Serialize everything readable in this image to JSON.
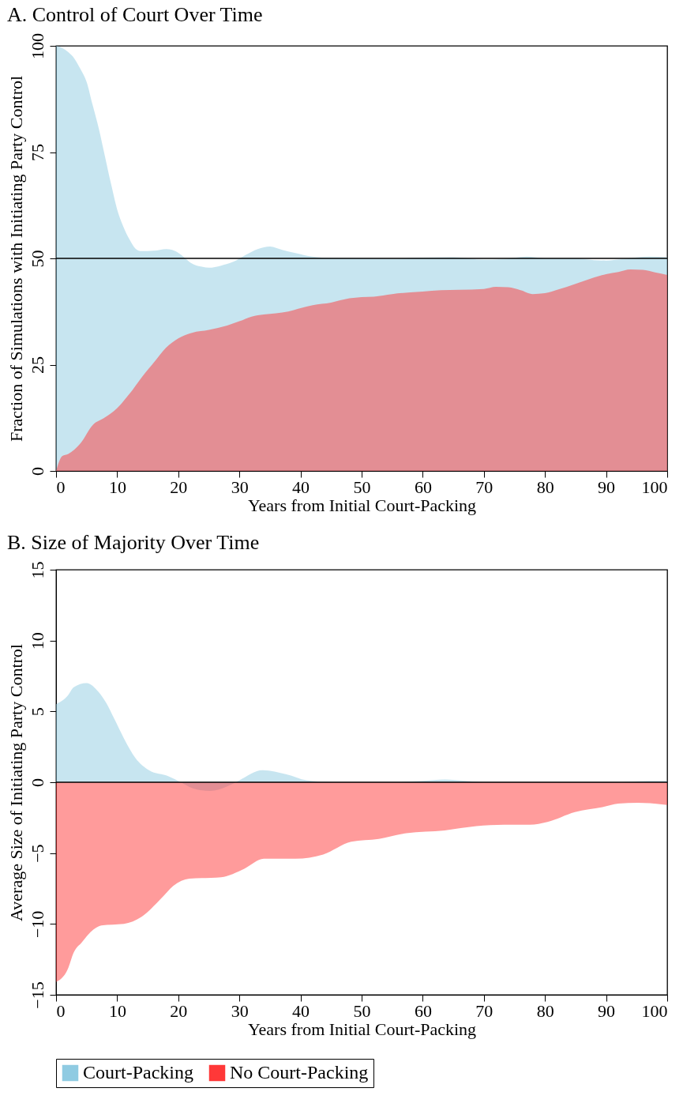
{
  "chart_data": [
    {
      "type": "area",
      "title": "A. Control of Court Over Time",
      "xlabel": "Years from Initial Court-Packing",
      "ylabel": "Fraction of Simulations with Initiating Party Control",
      "xlim": [
        0,
        100
      ],
      "xticks": [
        0,
        10,
        20,
        30,
        40,
        50,
        60,
        70,
        80,
        90,
        100
      ],
      "ylim": [
        0,
        100
      ],
      "yticks": [
        0,
        25,
        50,
        75,
        100
      ],
      "ref_lines": [
        {
          "axis": "y",
          "value": 50,
          "color": "#000000"
        }
      ],
      "legend": "bottom",
      "series": [
        {
          "name": "Court-Packing",
          "color": "#8fcbe2",
          "x": [
            0,
            1,
            2,
            3,
            4,
            5,
            6,
            7,
            8,
            9,
            10,
            11,
            12,
            13,
            14,
            16,
            18,
            19,
            20,
            21,
            22,
            24,
            25,
            27,
            29,
            31,
            33,
            35,
            37,
            39,
            42,
            45,
            50,
            55,
            60,
            65,
            70,
            73,
            77,
            80,
            85,
            88,
            90,
            93,
            97,
            100
          ],
          "values": [
            100,
            99.5,
            98.5,
            97,
            94.5,
            91.5,
            86,
            80.5,
            74,
            67.5,
            61.5,
            57.5,
            54.5,
            52.3,
            51.7,
            51.8,
            52.2,
            52,
            51.3,
            50.2,
            49,
            48,
            47.8,
            48.3,
            49.2,
            50.8,
            52.2,
            52.8,
            52,
            51.3,
            50.4,
            50.1,
            50,
            49.9,
            50.2,
            50.3,
            49.7,
            49.8,
            50.4,
            50,
            50,
            49.6,
            49.5,
            49.9,
            50.4,
            50.3
          ]
        },
        {
          "name": "No Court-Packing",
          "color": "#ff3838",
          "x": [
            0,
            1,
            2,
            4,
            6,
            8,
            10,
            12,
            14,
            16,
            18,
            20,
            22,
            25,
            28,
            30,
            32,
            34,
            36,
            38,
            40,
            42,
            45,
            48,
            50,
            52,
            55,
            58,
            60,
            63,
            66,
            70,
            72,
            74,
            76,
            78,
            80,
            82,
            85,
            88,
            90,
            92,
            94,
            96,
            98,
            100
          ],
          "values": [
            0,
            3.5,
            4,
            6.5,
            10.8,
            12.6,
            14.8,
            18.1,
            22,
            25.5,
            29,
            31.2,
            32.4,
            33.2,
            34.2,
            35.2,
            36.3,
            36.8,
            37.1,
            37.5,
            38.3,
            39,
            39.6,
            40.6,
            40.9,
            41,
            41.6,
            42,
            42.2,
            42.5,
            42.6,
            42.8,
            43.3,
            43.2,
            42.5,
            41.6,
            41.8,
            42.6,
            44,
            45.5,
            46.3,
            46.8,
            47.4,
            47.3,
            46.7,
            46.1
          ]
        }
      ]
    },
    {
      "type": "area",
      "title": "B. Size of Majority Over Time",
      "xlabel": "Years from Initial Court-Packing",
      "ylabel": "Average Size of Initiating Party Control",
      "xlim": [
        0,
        100
      ],
      "xticks": [
        0,
        10,
        20,
        30,
        40,
        50,
        60,
        70,
        80,
        90,
        100
      ],
      "ylim": [
        -15,
        15
      ],
      "yticks": [
        -15,
        -10,
        -5,
        0,
        5,
        10,
        15
      ],
      "ref_lines": [
        {
          "axis": "y",
          "value": 0,
          "color": "#000000"
        }
      ],
      "legend": "bottom",
      "series": [
        {
          "name": "Court-Packing",
          "color": "#8fcbe2",
          "x": [
            0,
            1.9,
            2.9,
            5,
            6.9,
            8.2,
            9.5,
            11.1,
            13,
            15.2,
            18.4,
            20.4,
            22.3,
            25.2,
            28.1,
            30,
            33.8,
            37.7,
            41,
            45.5,
            50,
            55,
            60,
            63.6,
            67,
            70,
            80,
            90,
            97,
            100
          ],
          "values": [
            5.5,
            6.1,
            6.7,
            7,
            6.4,
            5.6,
            4.5,
            3.1,
            1.7,
            0.85,
            0.42,
            0,
            -0.42,
            -0.62,
            -0.28,
            0.14,
            0.85,
            0.56,
            0.14,
            0,
            0,
            0,
            0.1,
            0.2,
            0.1,
            0,
            0,
            -0.05,
            0.1,
            0.1
          ]
        },
        {
          "name": "No Court-Packing",
          "color": "#ff3838",
          "x": [
            0,
            1.9,
            2.9,
            4.2,
            6.1,
            7.4,
            11.1,
            14,
            17.2,
            19.2,
            21.8,
            27,
            30.8,
            34,
            39.2,
            43.7,
            48.3,
            52.8,
            57.3,
            63.6,
            68.8,
            73.3,
            77.5,
            80.4,
            84.9,
            89.4,
            92,
            95.2,
            100
          ],
          "values": [
            -14.1,
            -13.2,
            -12,
            -11.3,
            -10.4,
            -10.1,
            -10,
            -9.5,
            -8.2,
            -7.3,
            -6.8,
            -6.7,
            -6.1,
            -5.4,
            -5.4,
            -5.1,
            -4.2,
            -4,
            -3.6,
            -3.4,
            -3.1,
            -3,
            -3,
            -2.8,
            -2.1,
            -1.75,
            -1.5,
            -1.45,
            -1.6
          ]
        }
      ]
    }
  ]
}
